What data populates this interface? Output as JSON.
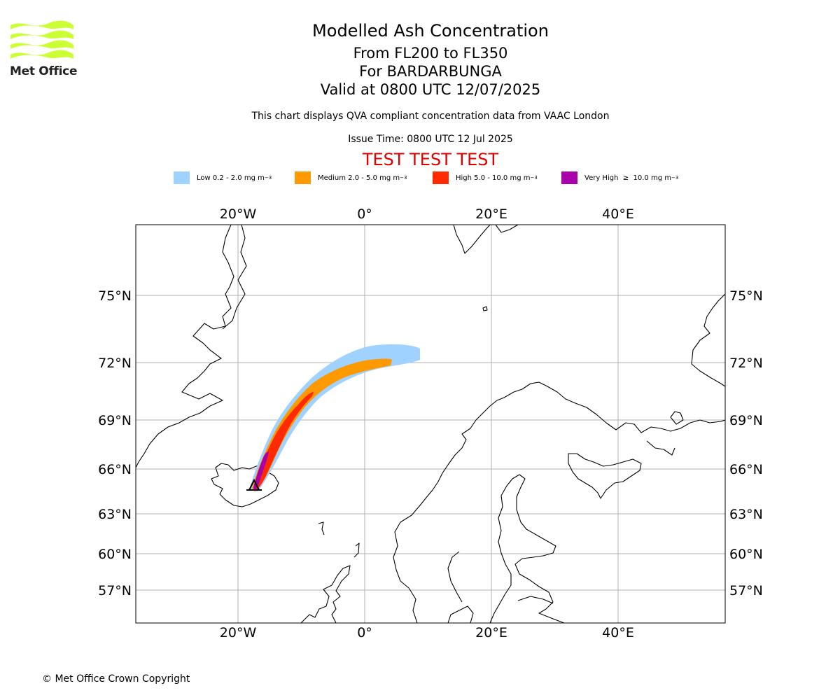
{
  "logo": {
    "text": "Met Office",
    "color": "#ccff33"
  },
  "titles": {
    "main": "Modelled Ash Concentration",
    "levels": "From FL200 to FL350",
    "volcano": "For BARDARBUNGA",
    "valid": "Valid at 0800 UTC 12/07/2025"
  },
  "subtitle": "This chart displays QVA compliant concentration data from VAAC London",
  "issue_time": "Issue Time: 0800 UTC 12 Jul 2025",
  "test_banner": "TEST TEST TEST",
  "legend": [
    {
      "label": "Low 0.2 - 2.0 mg m",
      "unit_exp": "−3",
      "color": "#a0d2ff"
    },
    {
      "label": "Medium 2.0 - 5.0 mg m",
      "unit_exp": "−3",
      "color": "#ff9900"
    },
    {
      "label": "High 5.0 - 10.0 mg m",
      "unit_exp": "−3",
      "color": "#ff2a00"
    },
    {
      "label": "Very High  ≥  10.0 mg m",
      "unit_exp": "−3",
      "color": "#aa00aa"
    }
  ],
  "map": {
    "lon_labels": [
      "20°W",
      "0°",
      "20°E",
      "40°E"
    ],
    "lat_labels": [
      "75°N",
      "72°N",
      "69°N",
      "66°N",
      "63°N",
      "60°N",
      "57°N"
    ],
    "gridline_color": "#b0b0b0",
    "volcano_marker": "triangle-icon"
  },
  "copyright": "© Met Office Crown Copyright"
}
